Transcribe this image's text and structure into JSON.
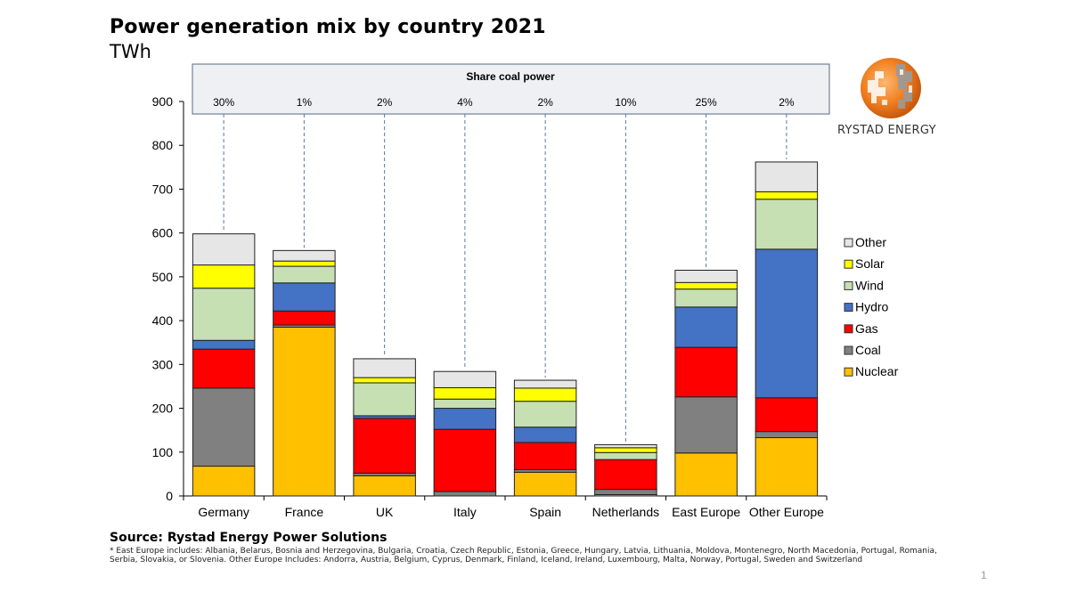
{
  "header": {
    "title": "Power generation mix by country 2021",
    "unit": "TWh"
  },
  "logo": {
    "brand": "RYSTAD ENERGY",
    "icon": "globe-logo-icon"
  },
  "share_box": {
    "title": "Share coal power",
    "values": [
      "30%",
      "1%",
      "2%",
      "4%",
      "2%",
      "10%",
      "25%",
      "2%"
    ]
  },
  "chart_data": {
    "type": "bar",
    "stacked": true,
    "title": "Power generation mix by country 2021",
    "ylabel": "TWh",
    "xlabel": "",
    "ylim": [
      0,
      900
    ],
    "yticks": [
      0,
      100,
      200,
      300,
      400,
      500,
      600,
      700,
      800,
      900
    ],
    "grid": false,
    "legend_position": "right",
    "categories": [
      "Germany",
      "France",
      "UK",
      "Italy",
      "Spain",
      "Netherlands",
      "East Europe",
      "Other Europe"
    ],
    "series": [
      {
        "name": "Nuclear",
        "color": "#FFC000",
        "values": [
          68,
          385,
          46,
          0,
          54,
          3,
          98,
          133
        ]
      },
      {
        "name": "Coal",
        "color": "#808080",
        "values": [
          178,
          5,
          6,
          10,
          6,
          12,
          128,
          14
        ]
      },
      {
        "name": "Gas",
        "color": "#FF0000",
        "values": [
          89,
          32,
          125,
          142,
          62,
          68,
          113,
          77
        ]
      },
      {
        "name": "Hydro",
        "color": "#4472C4",
        "values": [
          20,
          64,
          6,
          48,
          35,
          0,
          92,
          339
        ]
      },
      {
        "name": "Wind",
        "color": "#C6E0B4",
        "values": [
          119,
          38,
          75,
          21,
          59,
          16,
          41,
          114
        ]
      },
      {
        "name": "Solar",
        "color": "#FFFF00",
        "values": [
          53,
          12,
          12,
          26,
          30,
          11,
          15,
          17
        ]
      },
      {
        "name": "Other",
        "color": "#E7E6E6",
        "values": [
          71,
          24,
          43,
          37,
          18,
          7,
          28,
          68
        ]
      }
    ],
    "legend_order": [
      "Other",
      "Solar",
      "Wind",
      "Hydro",
      "Gas",
      "Coal",
      "Nuclear"
    ]
  },
  "footer": {
    "source": "Source: Rystad Energy Power Solutions",
    "footnote": "* East Europe includes:  Albania, Belarus, Bosnia and Herzegovina, Bulgaria, Croatia, Czech Republic, Estonia, Greece, Hungary, Latvia, Lithuania, Moldova, Montenegro, North Macedonia, Portugal, Romania, Serbia, Slovakia, or Slovenia. Other Europe Includes: Andorra, Austria, Belgium, Cyprus, Denmark, Finland, Iceland, Ireland, Luxembourg, Malta, Norway, Portugal, Sweden and Switzerland",
    "page_number": "1"
  }
}
